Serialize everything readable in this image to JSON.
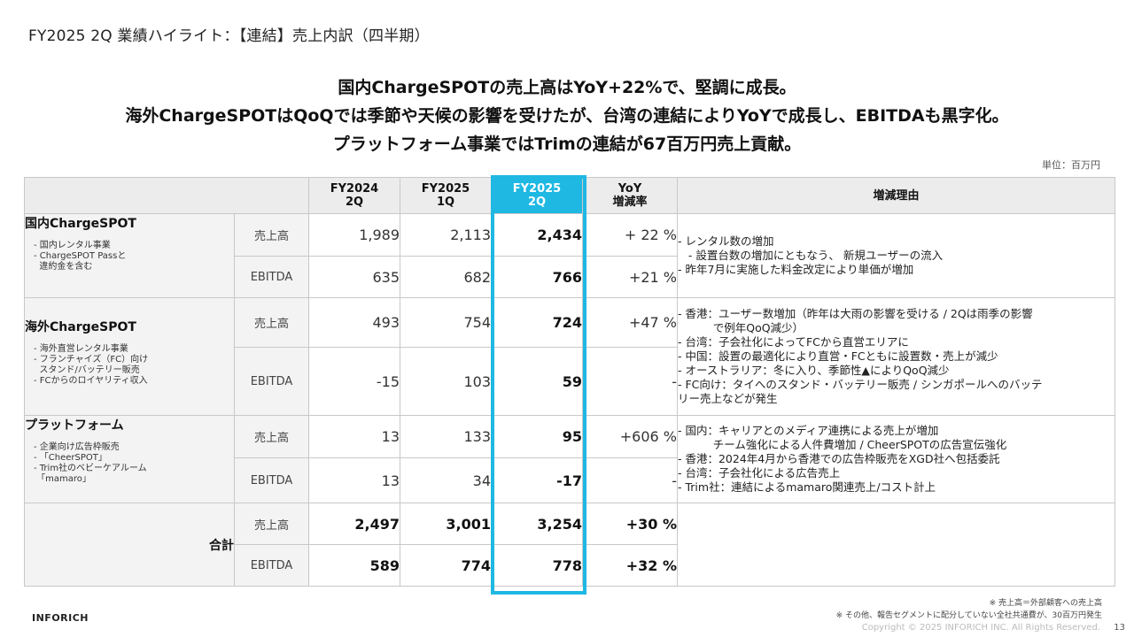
{
  "page_title": "FY2025 2Q 業績ハイライト：【連結】売上内訳（四半期）",
  "headlines": [
    "国内ChargeSPOTの売上高はYoY+22%で、堅調に成長。",
    "海外ChargeSPOTはQoQでは季節や天候の影響を受けたが、台湾の連結によりYoYで成長し、EBITDAも黒字化。",
    "プラットフォーム事業ではTrimの連結が67百万円売上貢献。"
  ],
  "unit": "単位：百万円",
  "table": {
    "headers": {
      "fy2024_2q": "FY2024\n2Q",
      "fy2025_1q": "FY2025\n1Q",
      "fy2025_2q": "FY2025\n2Q",
      "yoy": "YoY\n増減率",
      "reason": "増減理由"
    },
    "segments": [
      {
        "name": "国内ChargeSPOT",
        "notes": [
          "- 国内レンタル事業",
          "- ChargeSPOT Passと\n  違約金を含む"
        ],
        "rows": [
          {
            "metric": "売上高",
            "fy2024_2q": "1,989",
            "fy2025_1q": "2,113",
            "fy2025_2q": "2,434",
            "yoy": "+ 22 %"
          },
          {
            "metric": "EBITDA",
            "fy2024_2q": "635",
            "fy2025_1q": "682",
            "fy2025_2q": "766",
            "yoy": "+21 %"
          }
        ],
        "reasons": [
          "- レンタル数の増加",
          "   - 設置台数の増加にともなう、 新規ユーザーの流入",
          "- 昨年7月に実施した料金改定により単価が増加"
        ]
      },
      {
        "name": "海外ChargeSPOT",
        "notes": [
          "- 海外直営レンタル事業",
          "- フランチャイズ（FC）向け\n  スタンド/バッテリー販売",
          "- FCからのロイヤリティ収入"
        ],
        "rows": [
          {
            "metric": "売上高",
            "fy2024_2q": "493",
            "fy2025_1q": "754",
            "fy2025_2q": "724",
            "yoy": "+47 %"
          },
          {
            "metric": "EBITDA",
            "fy2024_2q": "-15",
            "fy2025_1q": "103",
            "fy2025_2q": "59",
            "yoy": "-"
          }
        ],
        "reasons": [
          "- 香港：ユーザー数増加（昨年は大雨の影響を受ける / 2Qは雨季の影響",
          "          で例年QoQ減少）",
          "- 台湾：子会社化によってFCから直営エリアに",
          "- 中国：設置の最適化により直営・FCともに設置数・売上が減少",
          "- オーストラリア：冬に入り、季節性▲によりQoQ減少",
          "- FC向け：タイへのスタンド・バッテリー販売 / シンガポールへのバッテ",
          "リー売上などが発生"
        ]
      },
      {
        "name": "プラットフォーム",
        "notes": [
          "- 企業向け広告枠販売",
          "- 「CheerSPOT」",
          "- Trim社のベビーケアルーム\n 「mamaro」"
        ],
        "rows": [
          {
            "metric": "売上高",
            "fy2024_2q": "13",
            "fy2025_1q": "133",
            "fy2025_2q": "95",
            "yoy": "+606 %"
          },
          {
            "metric": "EBITDA",
            "fy2024_2q": "13",
            "fy2025_1q": "34",
            "fy2025_2q": "-17",
            "yoy": "-"
          }
        ],
        "reasons": [
          "-  国内：キャリアとのメディア連携による売上が増加",
          "          チーム強化による人件費増加 / CheerSPOTの広告宣伝強化",
          "-  香港：2024年4月から香港での広告枠販売をXGD社へ包括委託",
          "-  台湾：子会社化による広告売上",
          "-  Trim社：連結によるmamaro関連売上/コスト計上"
        ]
      }
    ],
    "total": {
      "name": "合計",
      "rows": [
        {
          "metric": "売上高",
          "fy2024_2q": "2,497",
          "fy2025_1q": "3,001",
          "fy2025_2q": "3,254",
          "yoy": "+30 %"
        },
        {
          "metric": "EBITDA",
          "fy2024_2q": "589",
          "fy2025_1q": "774",
          "fy2025_2q": "778",
          "yoy": "+32 %"
        }
      ]
    }
  },
  "footnotes": [
    "※ 売上高＝外部顧客への売上高",
    "※ その他、報告セグメントに配分していない全社共通費が、30百万円発生"
  ],
  "copyright": "Copyright © 2025 INFORICH INC. All Rights Reserved.",
  "page_number": "13",
  "logo_text": "INFORICH",
  "colors": {
    "highlight": "#1fb8e3",
    "header_bg": "#ececec",
    "label_bg": "#f3f3f3"
  }
}
